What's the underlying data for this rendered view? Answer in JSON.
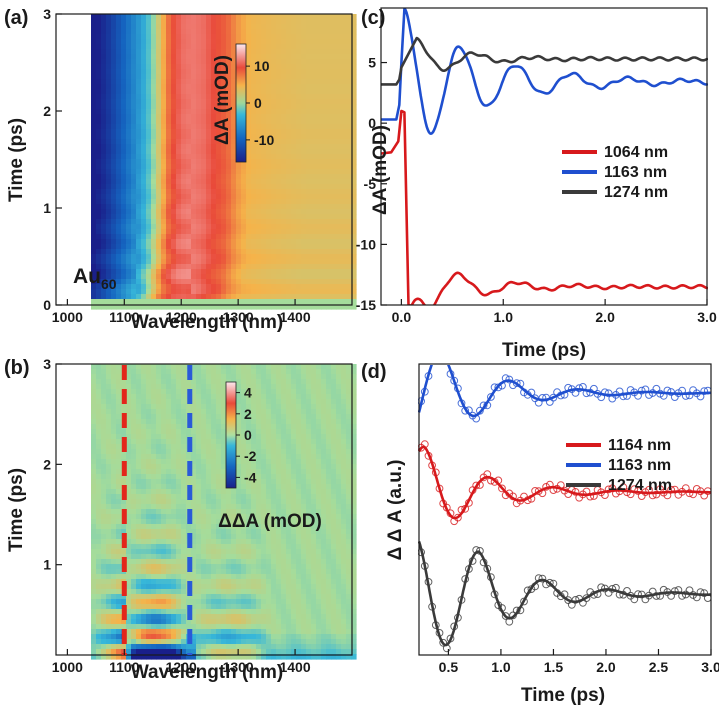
{
  "colors": {
    "red": "#d7191c",
    "blue": "#1f4fcf",
    "dark": "#3a3a3a",
    "dashed_red": "#e3261b",
    "dashed_blue": "#2a5ad8"
  },
  "chart_data": [
    {
      "panel": "(a)",
      "type": "heatmap",
      "xlabel": "Wavelength (nm)",
      "ylabel": "Time (ps)",
      "xlim": [
        980,
        1500
      ],
      "ylim": [
        0,
        3
      ],
      "xticks": [
        "1000",
        "1100",
        "1200",
        "1300",
        "1400"
      ],
      "xtick_values": [
        1000,
        1100,
        1200,
        1300,
        1400
      ],
      "yticks": [
        "0",
        "1",
        "2",
        "3"
      ],
      "ytick_values": [
        0,
        1,
        2,
        3
      ],
      "annotation": "Au",
      "annotation_sub": "60",
      "colorbar": {
        "label": "ΔA (mOD)",
        "range": [
          -16,
          16
        ],
        "ticks": [
          "10",
          "0",
          "-10"
        ],
        "tick_values": [
          10,
          0,
          -10
        ]
      },
      "data_start_wavelength": 1045,
      "spectrum_wavelengths": [
        1045,
        1070,
        1090,
        1110,
        1130,
        1150,
        1165,
        1180,
        1200,
        1220,
        1240,
        1260,
        1280,
        1300,
        1320,
        1360,
        1420,
        1500
      ],
      "spectrum_values": [
        -17,
        -14,
        -11,
        -8,
        -5,
        -1,
        4,
        8.5,
        11,
        11.5,
        11,
        9.5,
        8.5,
        6,
        4.5,
        4,
        3.5,
        3.5
      ],
      "oscillation_period_ps": 0.32
    },
    {
      "panel": "(b)",
      "type": "heatmap",
      "xlabel": "Wavelength (nm)",
      "ylabel": "Time (ps)",
      "xlim": [
        980,
        1500
      ],
      "ylim": [
        0.1,
        3
      ],
      "xticks": [
        "1000",
        "1100",
        "1200",
        "1300",
        "1400"
      ],
      "xtick_values": [
        1000,
        1100,
        1200,
        1300,
        1400
      ],
      "yticks": [
        "1",
        "2",
        "3"
      ],
      "ytick_values": [
        1,
        2,
        3
      ],
      "colorbar": {
        "label": "ΔΔA (mOD)",
        "range": [
          -5,
          5
        ],
        "ticks": [
          "4",
          "2",
          "0",
          "-2",
          "-4"
        ],
        "tick_values": [
          4,
          2,
          0,
          -2,
          -4
        ]
      },
      "dashed_lines_nm": [
        1100,
        1215
      ],
      "node_wavelength_nm": 1210,
      "oscillation_period_ps": 0.34
    },
    {
      "panel": "(c)",
      "type": "line",
      "xlabel": "Time (ps)",
      "ylabel": "ΔA (mOD)",
      "xlim": [
        -0.2,
        3.0
      ],
      "ylim": [
        -15,
        9.5
      ],
      "xticks": [
        "0.0",
        "1.0",
        "2.0",
        "3.0"
      ],
      "xtick_values": [
        0,
        1,
        2,
        3
      ],
      "yticks": [
        "5",
        "0",
        "-5",
        "-10",
        "-15"
      ],
      "ytick_values": [
        5,
        0,
        -5,
        -10,
        -15
      ],
      "legend_position": "right",
      "series": [
        {
          "name": "1064 nm",
          "color": "red",
          "pre_t": [
            -0.2,
            -0.1,
            -0.03,
            0.0,
            0.03
          ],
          "pre_v": [
            -2.5,
            -2.4,
            -1.5,
            1.0,
            0.9
          ],
          "drop_t": 0.07,
          "drop_v": -15.0,
          "t_start": 0.1,
          "base": -13.5,
          "amp": 2.4,
          "period": 0.58,
          "decay": 0.55,
          "phase_at_peak": 0.28
        },
        {
          "name": "1163 nm",
          "color": "blue",
          "pre_t": [
            -0.2,
            -0.05,
            -0.02,
            0.0
          ],
          "pre_v": [
            0.3,
            0.3,
            1.5,
            5.0
          ],
          "peak_t": 0.03,
          "peak_v": 9.3,
          "t_start": 0.03,
          "base": 3.4,
          "amp": 6.0,
          "period": 0.55,
          "decay": 0.75,
          "phase_at_peak": 0.03
        },
        {
          "name": "1274 nm",
          "color": "dark",
          "pre_t": [
            -0.2,
            -0.05,
            -0.02,
            0.0
          ],
          "pre_v": [
            3.2,
            3.2,
            3.6,
            4.6
          ],
          "peak_t": 0.15,
          "peak_v": 6.9,
          "t_start": 0.15,
          "base": 5.3,
          "amp": 1.6,
          "period": 0.58,
          "decay": 0.45,
          "phase_at_peak": 0.15
        }
      ]
    },
    {
      "panel": "(d)",
      "type": "line",
      "xlabel": "Time (ps)",
      "ylabel": "Δ Δ A (a.u.)",
      "xlim": [
        0.22,
        3.0
      ],
      "ylim": [
        0,
        10
      ],
      "xticks": [
        "0.5",
        "1.0",
        "1.5",
        "2.0",
        "2.5",
        "3.0"
      ],
      "xtick_values": [
        0.5,
        1.0,
        1.5,
        2.0,
        2.5,
        3.0
      ],
      "legend_position": "right",
      "markers": "open-circle",
      "series": [
        {
          "name": "1164 nm",
          "color": "red",
          "offset": 5.6,
          "amp": 1.55,
          "period": 0.62,
          "decay": 0.55,
          "peak_t": 0.27
        },
        {
          "name": "1163 nm",
          "color": "blue",
          "offset": 9.0,
          "amp": 1.4,
          "period": 0.66,
          "decay": 0.55,
          "peak_t": 0.43
        },
        {
          "name": "1274 nm",
          "color": "dark",
          "offset": 2.1,
          "amp": 1.45,
          "period": 0.62,
          "decay": 0.55,
          "peak_t": 0.79
        }
      ]
    }
  ]
}
